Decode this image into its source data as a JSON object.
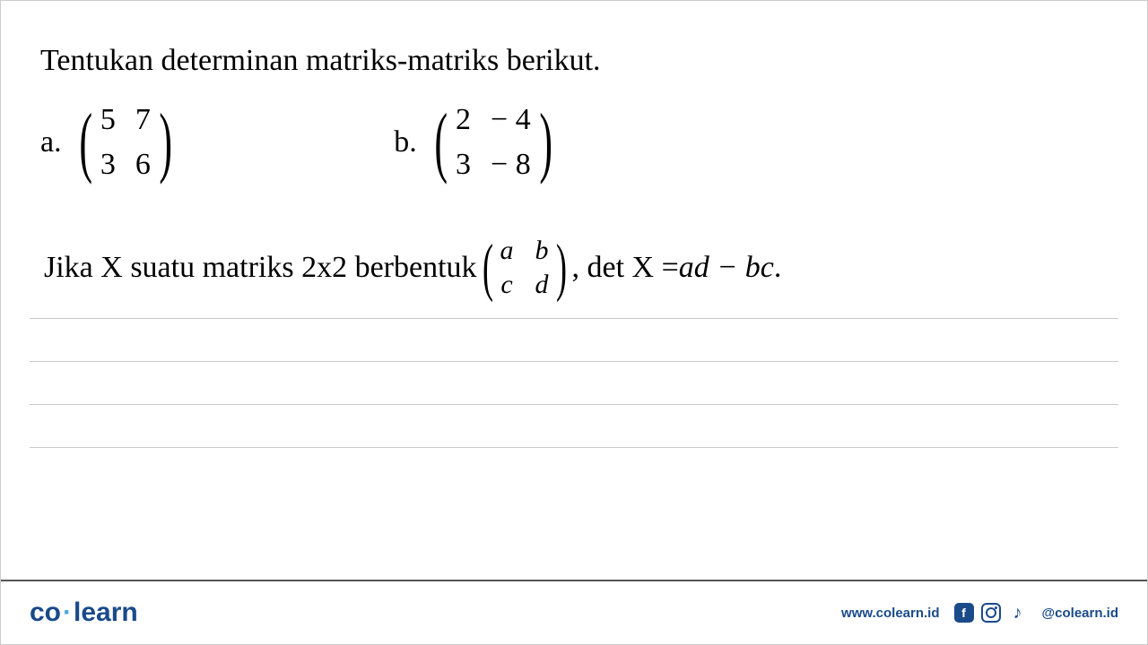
{
  "title": "Tentukan determinan matriks-matriks berikut.",
  "problems": {
    "a": {
      "label": "a.",
      "m11": "5",
      "m12": "7",
      "m21": "3",
      "m22": "6"
    },
    "b": {
      "label": "b.",
      "m11": "2",
      "m12": "− 4",
      "m21": "3",
      "m22": "− 8"
    }
  },
  "formula": {
    "prefix": "Jika X suatu matriks 2x2 berbentuk ",
    "m11": "a",
    "m12": "b",
    "m21": "c",
    "m22": "d",
    "mid": " , det X = ",
    "expr": "ad − bc",
    "suffix": " ."
  },
  "footer": {
    "logo_co": "co",
    "logo_learn": "learn",
    "url": "www.colearn.id",
    "handle": "@colearn.id"
  },
  "colors": {
    "primary": "#1a4a8a",
    "accent": "#4aa8d8",
    "line": "#c8c8c8",
    "text": "#000000"
  }
}
